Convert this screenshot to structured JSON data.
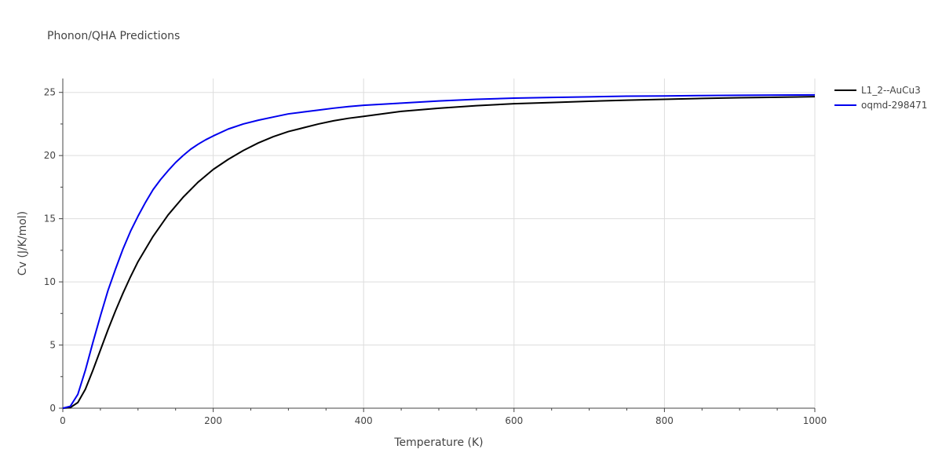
{
  "chart_data": {
    "type": "line",
    "title": "Phonon/QHA Predictions",
    "xlabel": "Temperature (K)",
    "ylabel": "Cv (J/K/mol)",
    "xlim": [
      0,
      1000
    ],
    "ylim": [
      0,
      26.1
    ],
    "xticks": [
      0,
      200,
      400,
      600,
      800,
      1000
    ],
    "yticks": [
      0,
      5,
      10,
      15,
      20,
      25
    ],
    "grid": true,
    "legend": "top-right",
    "series": [
      {
        "name": "L1_2--AuCu3",
        "color": "#000000",
        "x": [
          0,
          10,
          20,
          30,
          40,
          50,
          60,
          70,
          80,
          90,
          100,
          120,
          140,
          160,
          180,
          200,
          220,
          240,
          260,
          280,
          300,
          320,
          340,
          360,
          380,
          400,
          450,
          500,
          550,
          600,
          650,
          700,
          750,
          800,
          850,
          900,
          950,
          1000
        ],
        "y": [
          0,
          0.05,
          0.45,
          1.5,
          3.0,
          4.6,
          6.2,
          7.7,
          9.1,
          10.4,
          11.6,
          13.6,
          15.3,
          16.7,
          17.9,
          18.9,
          19.7,
          20.4,
          21.0,
          21.5,
          21.9,
          22.2,
          22.5,
          22.75,
          22.95,
          23.1,
          23.5,
          23.75,
          23.95,
          24.1,
          24.2,
          24.3,
          24.38,
          24.45,
          24.52,
          24.58,
          24.62,
          24.66
        ]
      },
      {
        "name": "oqmd-298471",
        "color": "#0000ee",
        "x": [
          0,
          10,
          20,
          30,
          40,
          50,
          60,
          70,
          80,
          90,
          100,
          110,
          120,
          130,
          140,
          150,
          160,
          170,
          180,
          190,
          200,
          220,
          240,
          260,
          280,
          300,
          320,
          340,
          360,
          380,
          400,
          450,
          500,
          550,
          600,
          650,
          700,
          750,
          800,
          850,
          900,
          950,
          1000
        ],
        "y": [
          0,
          0.15,
          1.1,
          3.0,
          5.2,
          7.3,
          9.3,
          11.0,
          12.6,
          14.0,
          15.2,
          16.3,
          17.3,
          18.1,
          18.8,
          19.45,
          20.0,
          20.5,
          20.9,
          21.25,
          21.55,
          22.1,
          22.5,
          22.8,
          23.05,
          23.3,
          23.45,
          23.6,
          23.75,
          23.88,
          23.98,
          24.15,
          24.32,
          24.45,
          24.55,
          24.6,
          24.65,
          24.7,
          24.72,
          24.75,
          24.77,
          24.79,
          24.8
        ]
      }
    ]
  }
}
